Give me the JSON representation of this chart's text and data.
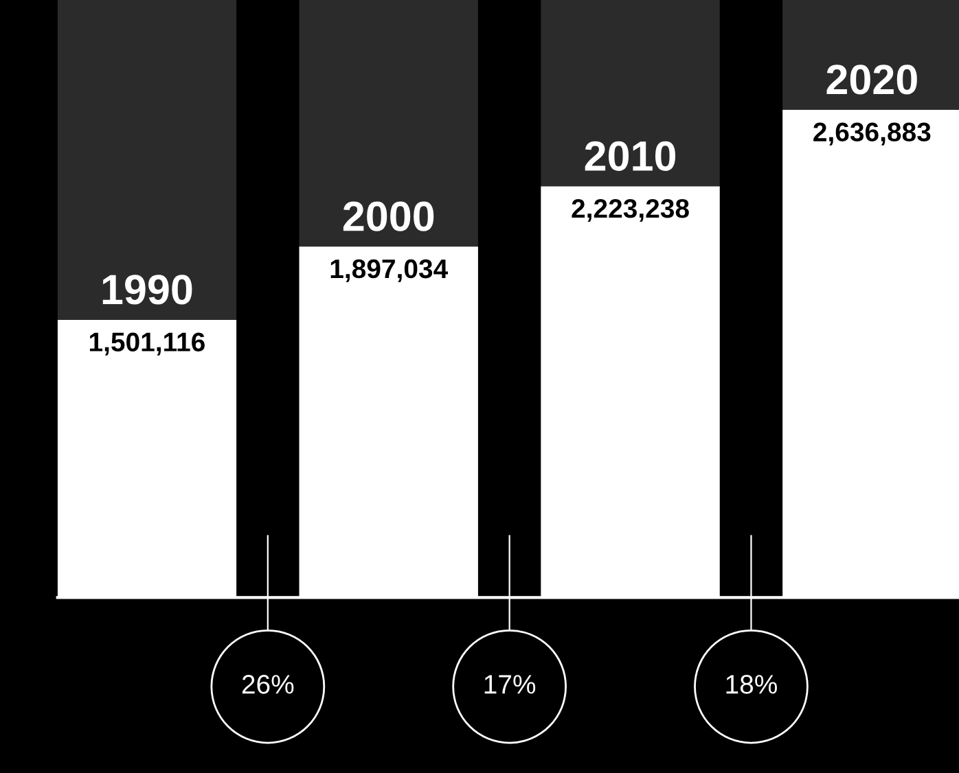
{
  "chart_data": {
    "type": "bar",
    "categories": [
      "1990",
      "2000",
      "2010",
      "2020"
    ],
    "values": [
      1501116,
      1897034,
      2223238,
      2636883
    ],
    "color": "#ffffff",
    "value_labels": [
      "1,501,116",
      "1,897,034",
      "2,223,238",
      "2,636,883"
    ],
    "annotations": [
      "26%",
      "17%",
      "18%"
    ]
  }
}
